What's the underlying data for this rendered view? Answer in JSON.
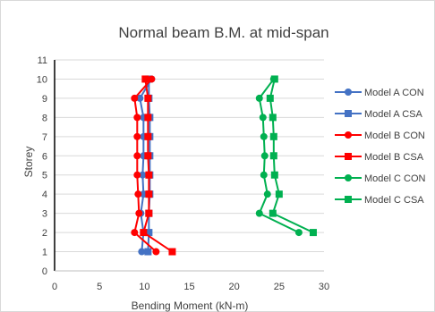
{
  "chart_data": {
    "type": "line",
    "title": "Normal beam B.M. at mid-span",
    "xlabel": "Bending Moment (kN-m)",
    "ylabel": "Storey",
    "xlim": [
      0,
      30
    ],
    "ylim": [
      0,
      11
    ],
    "x_ticks": [
      "0",
      "5",
      "10",
      "15",
      "20",
      "25",
      "30"
    ],
    "y_ticks": [
      "0",
      "1",
      "2",
      "3",
      "4",
      "5",
      "6",
      "7",
      "8",
      "9",
      "10",
      "11"
    ],
    "grid": "horizontal",
    "legend_position": "right",
    "storeys": [
      1,
      2,
      3,
      4,
      5,
      6,
      7,
      8,
      9,
      10
    ],
    "series": [
      {
        "name": "Model A CON",
        "color": "#4472C4",
        "marker": "circle",
        "values": [
          9.7,
          9.9,
          9.6,
          9.9,
          9.8,
          9.9,
          9.9,
          9.9,
          9.5,
          10.8
        ]
      },
      {
        "name": "Model A CSA",
        "color": "#4472C4",
        "marker": "square",
        "values": [
          10.4,
          10.5,
          10.5,
          10.6,
          10.6,
          10.6,
          10.6,
          10.6,
          10.5,
          10.5
        ]
      },
      {
        "name": "Model B CON",
        "color": "#FF0000",
        "marker": "circle",
        "values": [
          11.3,
          8.9,
          9.4,
          9.3,
          9.2,
          9.2,
          9.2,
          9.2,
          8.9,
          10.8
        ]
      },
      {
        "name": "Model B CSA",
        "color": "#FF0000",
        "marker": "square",
        "values": [
          13.1,
          9.9,
          10.5,
          10.5,
          10.5,
          10.4,
          10.4,
          10.4,
          10.4,
          10.1
        ]
      },
      {
        "name": "Model C CON",
        "color": "#00B050",
        "marker": "circle",
        "values": [
          null,
          27.2,
          22.8,
          23.7,
          23.3,
          23.4,
          23.3,
          23.2,
          22.8,
          24.4
        ]
      },
      {
        "name": "Model C CSA",
        "color": "#00B050",
        "marker": "square",
        "values": [
          null,
          28.8,
          24.3,
          25.0,
          24.5,
          24.4,
          24.4,
          24.3,
          24.0,
          24.5
        ]
      }
    ]
  }
}
